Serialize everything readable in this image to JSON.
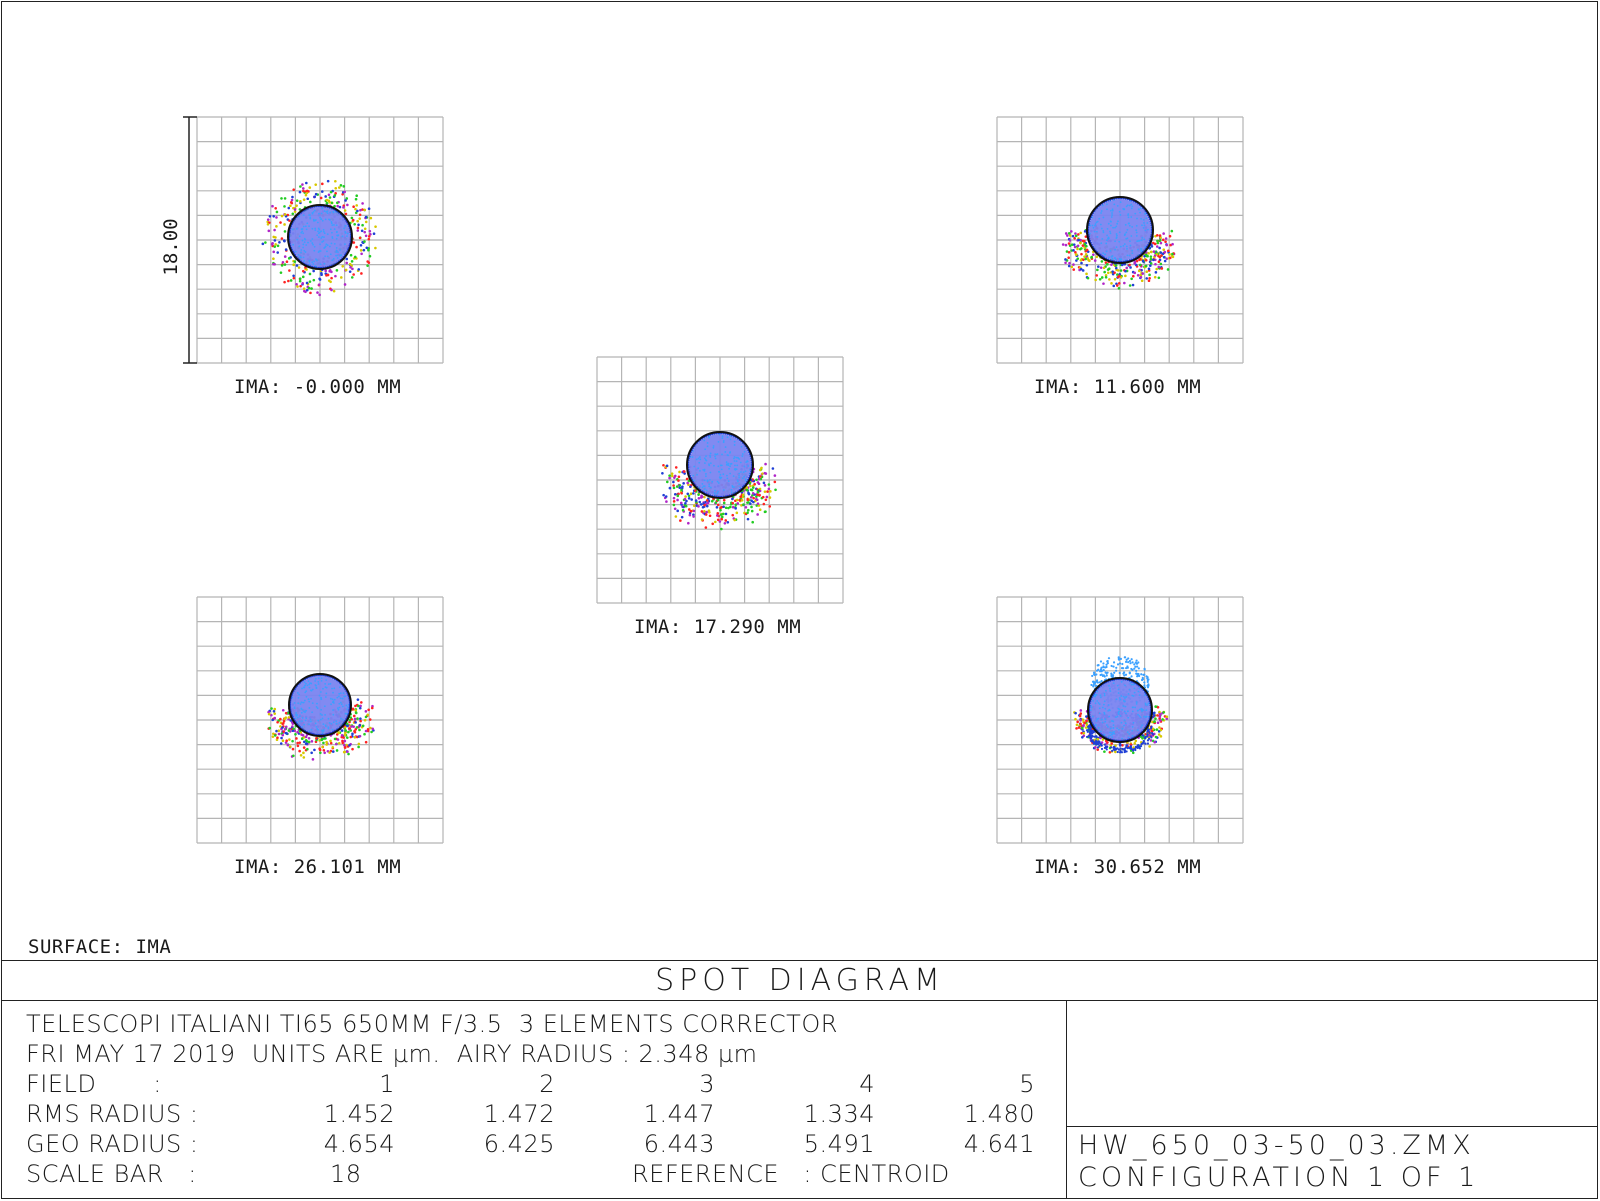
{
  "chart_data": {
    "type": "scatter",
    "title": "SPOT DIAGRAM",
    "surface_label": "SURFACE: IMA",
    "scale_bar_label": "18.00",
    "plots": [
      {
        "label": "IMA: -0.000 MM",
        "rms": 1.452,
        "geo": 4.654
      },
      {
        "label": "IMA: 11.600 MM",
        "rms": 1.472,
        "geo": 6.425
      },
      {
        "label": "IMA: 17.290 MM",
        "rms": 1.447,
        "geo": 6.443
      },
      {
        "label": "IMA: 26.101 MM",
        "rms": 1.334,
        "geo": 5.491
      },
      {
        "label": "IMA: 30.652 MM",
        "rms": 1.48,
        "geo": 4.641
      }
    ],
    "airy_radius": 2.348,
    "colors": {
      "wave1": "#1f3fd6",
      "wave2": "#3aa0ff",
      "wave3": "#22cc22",
      "wave4": "#ff2222",
      "wave5": "#d8c800",
      "wave6": "#b026c8",
      "airy": "#111111",
      "grid": "#b5b5b5"
    }
  },
  "info": {
    "line1": "TELESCOPI ITALIANI TI65 650MM F/3.5  3 ELEMENTS CORRECTOR",
    "line2": "FRI MAY 17 2019  UNITS ARE µm.  AIRY RADIUS : 2.348 µm",
    "field_label": "FIELD       :",
    "fields": [
      "1",
      "2",
      "3",
      "4",
      "5"
    ],
    "rms_label": "RMS RADIUS :",
    "rms_values": [
      "1.452",
      "1.472",
      "1.447",
      "1.334",
      "1.480"
    ],
    "geo_label": "GEO RADIUS :",
    "geo_values": [
      "4.654",
      "6.425",
      "6.443",
      "5.491",
      "4.641"
    ],
    "scale_label": "SCALE BAR   :",
    "scale_value": "18",
    "reference_label": "REFERENCE   : CENTROID"
  },
  "file": {
    "name": "HW_650_03-50_03.ZMX",
    "config": "CONFIGURATION 1 OF 1"
  }
}
